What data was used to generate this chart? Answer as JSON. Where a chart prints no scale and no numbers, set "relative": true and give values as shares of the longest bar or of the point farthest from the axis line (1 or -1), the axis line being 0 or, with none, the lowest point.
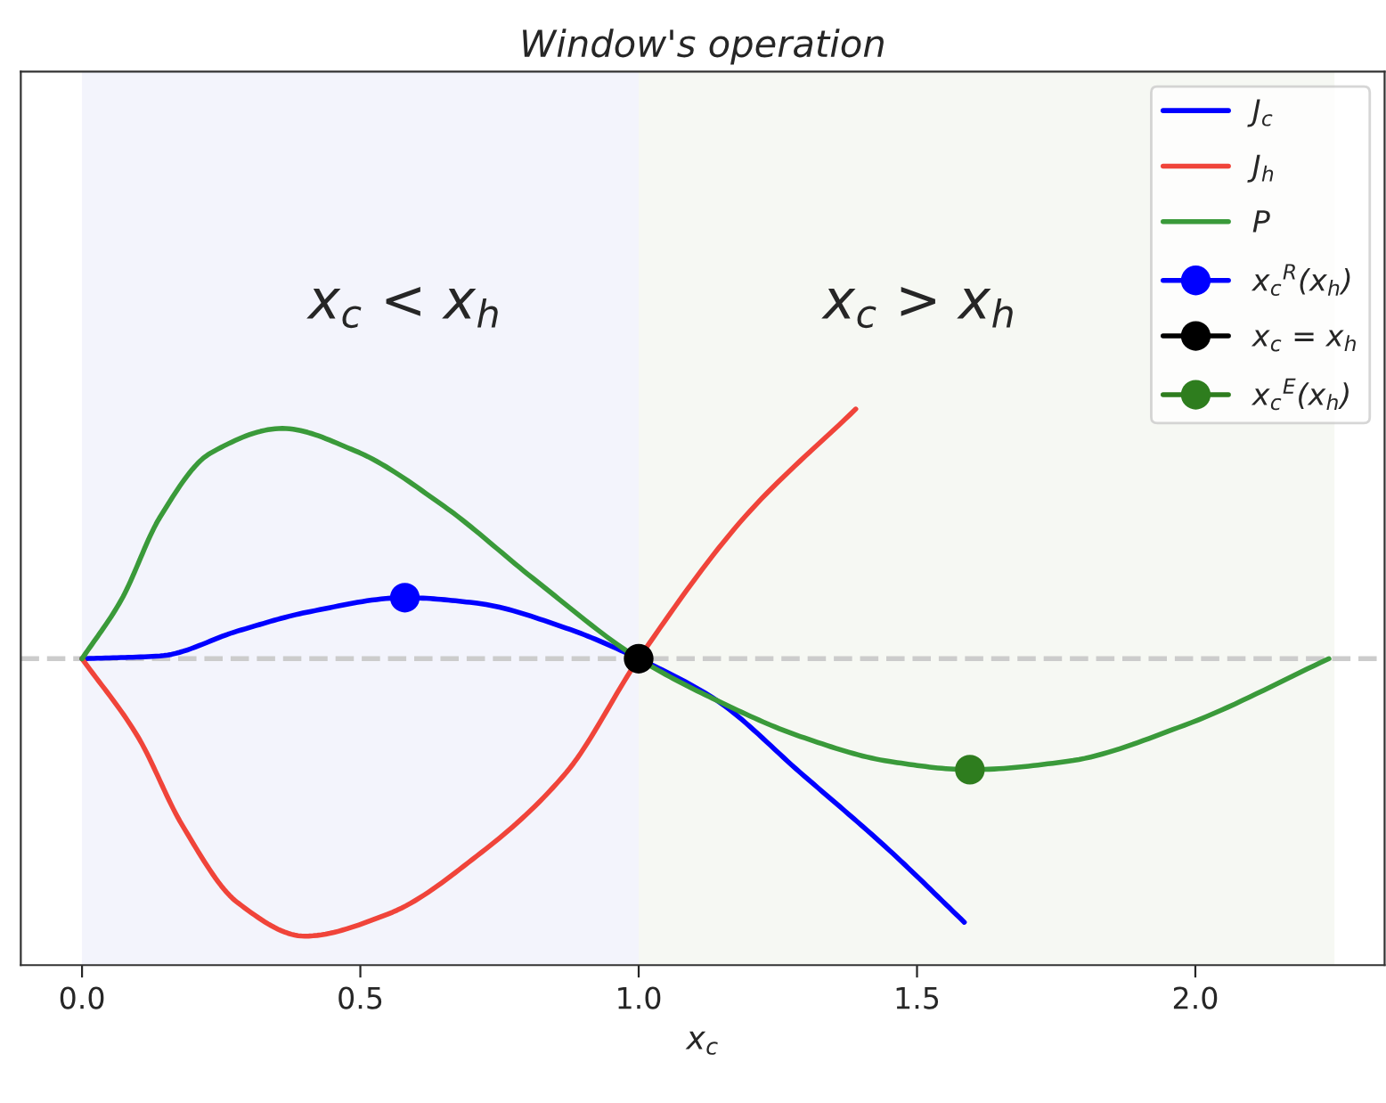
{
  "chart_data": {
    "type": "line",
    "title": "Window's operation",
    "xlabel": "x$_{c}$",
    "relative": true,
    "xlim": [
      -0.11,
      2.34
    ],
    "xticks": [
      {
        "value": 0,
        "label": "0.0"
      },
      0.5,
      {
        "value": 1,
        "label": "1.0"
      },
      1.5,
      {
        "value": 2,
        "label": "2.0"
      }
    ],
    "tick_labels": "x",
    "grid": false,
    "legend": "top right",
    "marker": "none",
    "line_style": "solid",
    "series": [
      {
        "name": "J$_{c}$",
        "color": "#0000ff",
        "x": [
          0,
          0.14,
          0.28,
          0.41,
          0.58,
          0.71,
          0.87,
          1.0,
          1.14,
          1.29,
          1.45,
          1.585
        ],
        "values": [
          0,
          0.01,
          0.1,
          0.17,
          0.22,
          0.2,
          0.11,
          0,
          -0.15,
          -0.41,
          -0.69,
          -0.95
        ]
      },
      {
        "name": "J$_{h}$",
        "color": "#f0443a",
        "x": [
          0,
          0.1,
          0.18,
          0.28,
          0.4,
          0.55,
          0.71,
          0.87,
          1.0,
          1.19,
          1.39
        ],
        "values": [
          0,
          -0.28,
          -0.6,
          -0.88,
          -1.0,
          -0.92,
          -0.71,
          -0.41,
          0,
          0.51,
          0.9
        ]
      },
      {
        "name": "P",
        "color": "#3a9a3a",
        "x": [
          0,
          0.07,
          0.14,
          0.23,
          0.36,
          0.49,
          0.65,
          0.81,
          1.0,
          1.14,
          1.29,
          1.45,
          1.595,
          1.77,
          1.98,
          2.24
        ],
        "values": [
          0,
          0.21,
          0.51,
          0.74,
          0.83,
          0.75,
          0.55,
          0.29,
          0,
          -0.15,
          -0.28,
          -0.37,
          -0.4,
          -0.37,
          -0.24,
          0
        ]
      },
      {
        "name": "x$_{c}$$^{R}$(x$_{h}$)",
        "type": "scatter",
        "marker": "circle",
        "color": "#0000ff",
        "x": [
          0.58
        ],
        "values": [
          0.22
        ]
      },
      {
        "name": "x$_{c}$ = x$_{h}$",
        "type": "scatter",
        "marker": "circle",
        "color": "#000000",
        "x": [
          1.0
        ],
        "values": [
          0
        ]
      },
      {
        "name": "x$_{c}$$^{E}$(x$_{h}$)",
        "type": "scatter",
        "marker": "circle",
        "color": "#2e7d1e",
        "x": [
          1.595
        ],
        "values": [
          -0.4
        ]
      }
    ],
    "ref_lines": [
      {
        "axis": "y",
        "value": 0,
        "color": "#cccccc",
        "line_style": "dashed"
      }
    ],
    "bands": [
      {
        "axis": "x",
        "from": 0,
        "to": 1,
        "color": "#f3f4fc"
      },
      {
        "axis": "x",
        "from": 1,
        "to": 2.25,
        "color": "#f6f8f3"
      }
    ],
    "annotations": [
      "x$_{c}$ < x$_{h}$",
      "x$_{c}$ > x$_{h}$"
    ]
  }
}
